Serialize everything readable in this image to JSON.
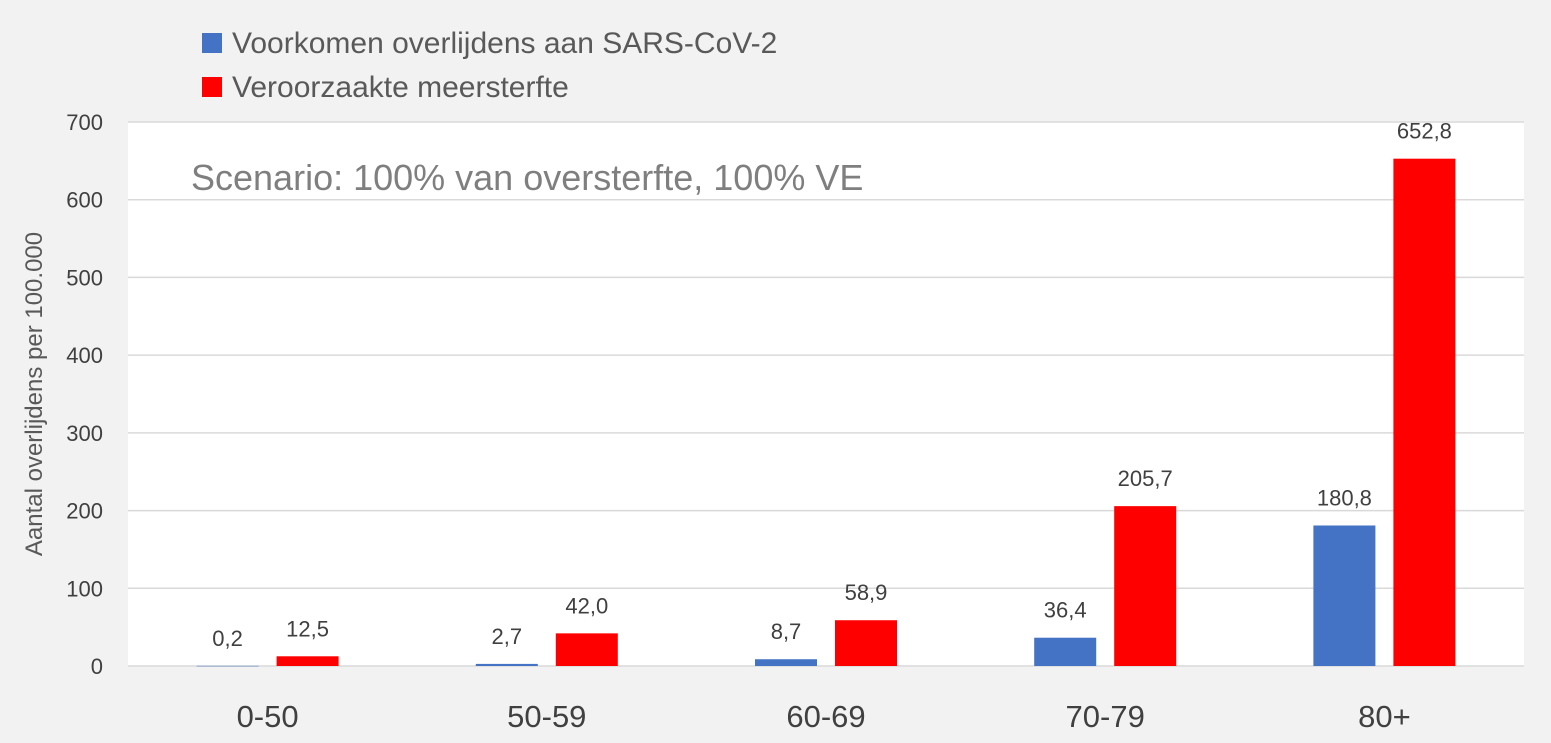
{
  "chart_data": {
    "type": "bar",
    "categories": [
      "0-50",
      "50-59",
      "60-69",
      "70-79",
      "80+"
    ],
    "series": [
      {
        "name": "Voorkomen overlijdens aan SARS-CoV-2",
        "values": [
          0.2,
          2.7,
          8.7,
          36.4,
          180.8
        ],
        "labels": [
          "0,2",
          "2,7",
          "8,7",
          "36,4",
          "180,8"
        ],
        "color": "#4472c4"
      },
      {
        "name": "Veroorzaakte meersterfte",
        "values": [
          12.5,
          42.0,
          58.9,
          205.7,
          652.8
        ],
        "labels": [
          "12,5",
          "42,0",
          "58,9",
          "205,7",
          "652,8"
        ],
        "color": "#ff0000"
      }
    ],
    "annotation": "Scenario: 100% van oversterfte,  100% VE",
    "xlabel": "",
    "ylabel": "Aantal overlijdens  per 100.000",
    "ylim": [
      0,
      700
    ],
    "yticks": [
      "0",
      "100",
      "200",
      "300",
      "400",
      "500",
      "600",
      "700"
    ],
    "ytick_values": [
      0,
      100,
      200,
      300,
      400,
      500,
      600,
      700
    ],
    "grid": true,
    "legend_position": "top-left"
  }
}
